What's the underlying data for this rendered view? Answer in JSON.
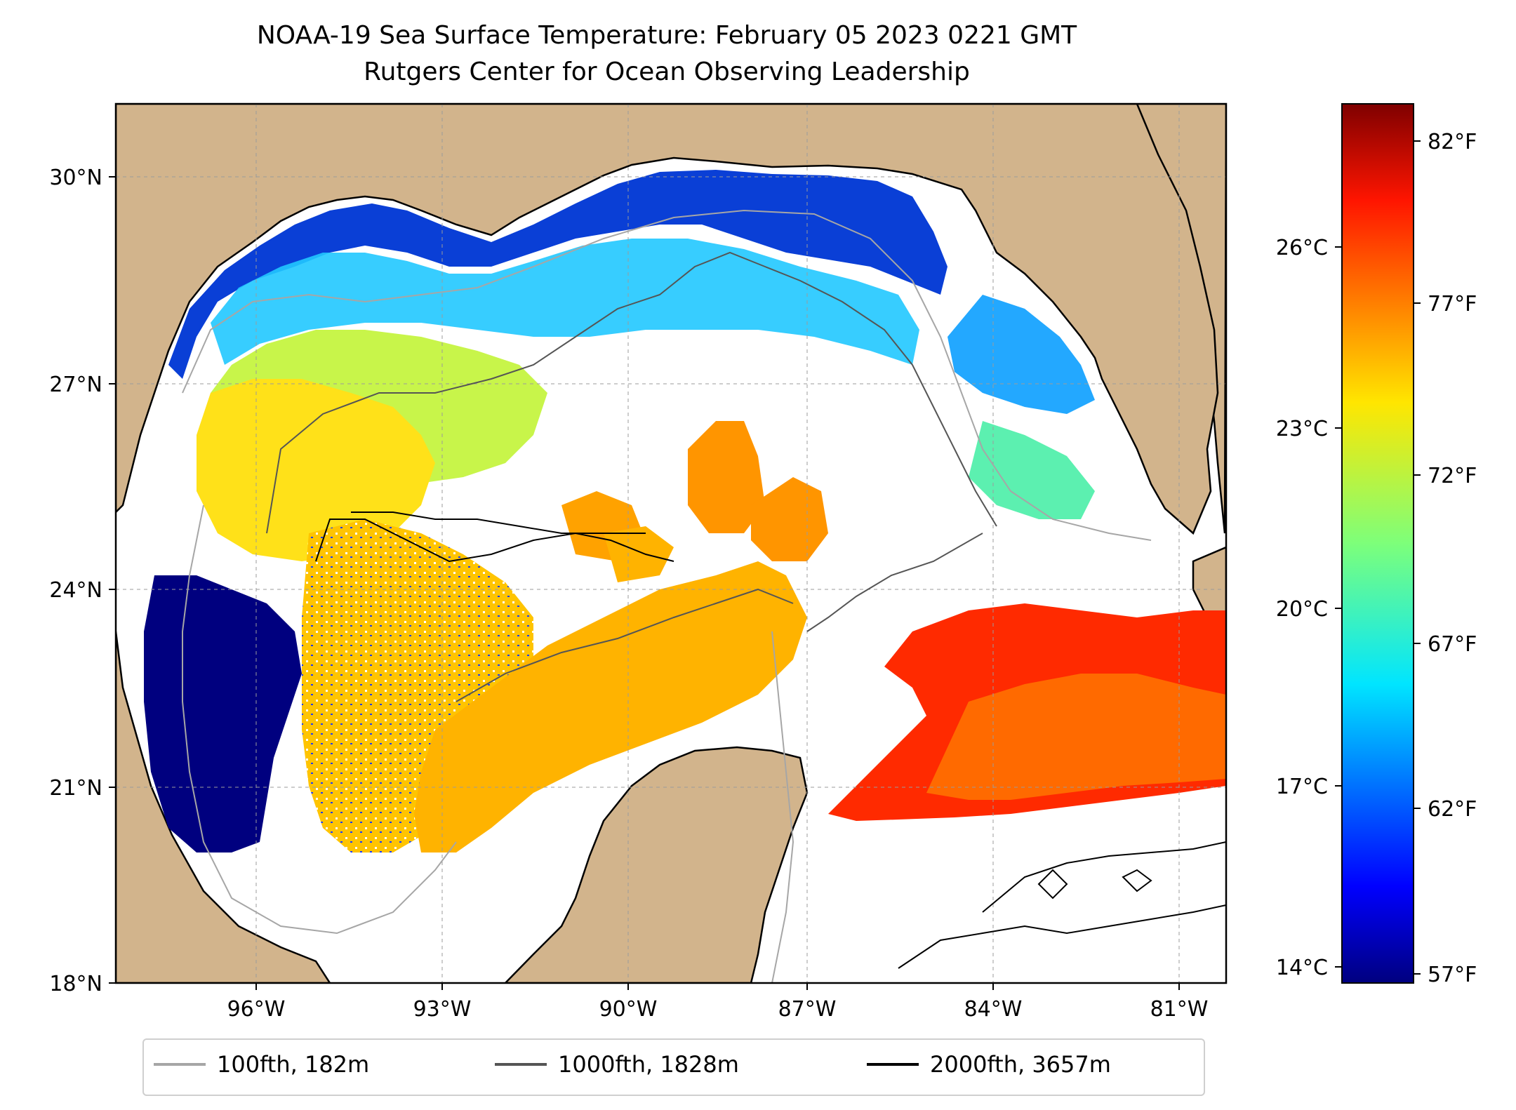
{
  "title": "NOAA-19 Sea Surface Temperature: February 05 2023 0221 GMT",
  "subtitle": "Rutgers Center for Ocean Observing Leadership",
  "axes": {
    "lat_ticks": [
      "30°N",
      "27°N",
      "24°N",
      "21°N",
      "18°N"
    ],
    "lon_ticks": [
      "96°W",
      "93°W",
      "90°W",
      "87°W",
      "84°W",
      "81°W"
    ]
  },
  "colorbar": {
    "celsius_ticks": [
      "26°C",
      "23°C",
      "20°C",
      "17°C",
      "14°C"
    ],
    "fahrenheit_ticks": [
      "82°F",
      "77°F",
      "72°F",
      "67°F",
      "62°F",
      "57°F"
    ]
  },
  "legend": [
    {
      "label": "100fth, 182m",
      "color": "#a6a6a6"
    },
    {
      "label": "1000fth, 1828m",
      "color": "#555555"
    },
    {
      "label": "2000fth, 3657m",
      "color": "#000000"
    }
  ],
  "colors": {
    "land": "#d2b48c",
    "cold": "#00008b",
    "hot": "#ff0000"
  }
}
